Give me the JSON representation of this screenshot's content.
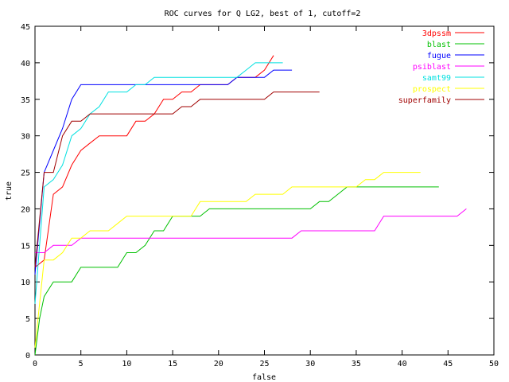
{
  "chart_data": {
    "type": "line",
    "title": "ROC curves for Q LG2, best of 1, cutoff=2",
    "xlabel": "false",
    "ylabel": "true",
    "xlim": [
      0,
      50
    ],
    "ylim": [
      0,
      45
    ],
    "xticks": [
      0,
      5,
      10,
      15,
      20,
      25,
      30,
      35,
      40,
      45,
      50
    ],
    "yticks": [
      0,
      5,
      10,
      15,
      20,
      25,
      30,
      35,
      40,
      45
    ],
    "grid": false,
    "legend_position": "top-right",
    "series": [
      {
        "name": "3dpssm",
        "color": "#ff0000",
        "points": [
          [
            0,
            12
          ],
          [
            1,
            13
          ],
          [
            2,
            22
          ],
          [
            3,
            23
          ],
          [
            4,
            26
          ],
          [
            5,
            28
          ],
          [
            6,
            29
          ],
          [
            7,
            30
          ],
          [
            8,
            30
          ],
          [
            9,
            30
          ],
          [
            10,
            30
          ],
          [
            11,
            32
          ],
          [
            12,
            32
          ],
          [
            13,
            33
          ],
          [
            14,
            35
          ],
          [
            15,
            35
          ],
          [
            16,
            36
          ],
          [
            17,
            36
          ],
          [
            18,
            37
          ],
          [
            19,
            37
          ],
          [
            20,
            37
          ],
          [
            21,
            37
          ],
          [
            22,
            38
          ],
          [
            23,
            38
          ],
          [
            24,
            38
          ],
          [
            25,
            39
          ],
          [
            26,
            41
          ]
        ]
      },
      {
        "name": "blast",
        "color": "#00c000",
        "points": [
          [
            0,
            0
          ],
          [
            0.5,
            5
          ],
          [
            1,
            8
          ],
          [
            2,
            10
          ],
          [
            3,
            10
          ],
          [
            4,
            10
          ],
          [
            5,
            12
          ],
          [
            6,
            12
          ],
          [
            7,
            12
          ],
          [
            8,
            12
          ],
          [
            9,
            12
          ],
          [
            10,
            14
          ],
          [
            11,
            14
          ],
          [
            12,
            15
          ],
          [
            13,
            17
          ],
          [
            14,
            17
          ],
          [
            15,
            19
          ],
          [
            16,
            19
          ],
          [
            17,
            19
          ],
          [
            18,
            19
          ],
          [
            19,
            20
          ],
          [
            20,
            20
          ],
          [
            21,
            20
          ],
          [
            22,
            20
          ],
          [
            23,
            20
          ],
          [
            24,
            20
          ],
          [
            25,
            20
          ],
          [
            26,
            20
          ],
          [
            27,
            20
          ],
          [
            28,
            20
          ],
          [
            29,
            20
          ],
          [
            30,
            20
          ],
          [
            31,
            21
          ],
          [
            32,
            21
          ],
          [
            33,
            22
          ],
          [
            34,
            23
          ],
          [
            35,
            23
          ],
          [
            36,
            23
          ],
          [
            37,
            23
          ],
          [
            38,
            23
          ],
          [
            39,
            23
          ],
          [
            40,
            23
          ],
          [
            41,
            23
          ],
          [
            42,
            23
          ],
          [
            43,
            23
          ],
          [
            44,
            23
          ]
        ]
      },
      {
        "name": "fugue",
        "color": "#0000ff",
        "points": [
          [
            0,
            11
          ],
          [
            1,
            25
          ],
          [
            2,
            28
          ],
          [
            3,
            31
          ],
          [
            4,
            35
          ],
          [
            5,
            37
          ],
          [
            6,
            37
          ],
          [
            7,
            37
          ],
          [
            8,
            37
          ],
          [
            9,
            37
          ],
          [
            10,
            37
          ],
          [
            11,
            37
          ],
          [
            12,
            37
          ],
          [
            13,
            37
          ],
          [
            14,
            37
          ],
          [
            15,
            37
          ],
          [
            16,
            37
          ],
          [
            17,
            37
          ],
          [
            18,
            37
          ],
          [
            19,
            37
          ],
          [
            20,
            37
          ],
          [
            21,
            37
          ],
          [
            22,
            38
          ],
          [
            23,
            38
          ],
          [
            24,
            38
          ],
          [
            25,
            38
          ],
          [
            26,
            39
          ],
          [
            27,
            39
          ],
          [
            28,
            39
          ]
        ]
      },
      {
        "name": "psiblast",
        "color": "#ff00ff",
        "points": [
          [
            0,
            14
          ],
          [
            1,
            14
          ],
          [
            2,
            15
          ],
          [
            3,
            15
          ],
          [
            4,
            15
          ],
          [
            5,
            16
          ],
          [
            6,
            16
          ],
          [
            10,
            16
          ],
          [
            15,
            16
          ],
          [
            20,
            16
          ],
          [
            25,
            16
          ],
          [
            28,
            16
          ],
          [
            29,
            17
          ],
          [
            30,
            17
          ],
          [
            35,
            17
          ],
          [
            37,
            17
          ],
          [
            38,
            19
          ],
          [
            40,
            19
          ],
          [
            45,
            19
          ],
          [
            46,
            19
          ],
          [
            47,
            20
          ]
        ]
      },
      {
        "name": "samt99",
        "color": "#00e0e0",
        "points": [
          [
            0,
            7
          ],
          [
            1,
            23
          ],
          [
            2,
            24
          ],
          [
            3,
            26
          ],
          [
            4,
            30
          ],
          [
            5,
            31
          ],
          [
            6,
            33
          ],
          [
            7,
            34
          ],
          [
            8,
            36
          ],
          [
            9,
            36
          ],
          [
            10,
            36
          ],
          [
            11,
            37
          ],
          [
            12,
            37
          ],
          [
            13,
            38
          ],
          [
            14,
            38
          ],
          [
            15,
            38
          ],
          [
            16,
            38
          ],
          [
            17,
            38
          ],
          [
            18,
            38
          ],
          [
            19,
            38
          ],
          [
            20,
            38
          ],
          [
            21,
            38
          ],
          [
            22,
            38
          ],
          [
            23,
            39
          ],
          [
            24,
            40
          ],
          [
            25,
            40
          ],
          [
            26,
            40
          ],
          [
            27,
            40
          ]
        ]
      },
      {
        "name": "prospect",
        "color": "#ffff00",
        "points": [
          [
            0,
            1
          ],
          [
            1,
            13
          ],
          [
            2,
            13
          ],
          [
            3,
            14
          ],
          [
            4,
            16
          ],
          [
            5,
            16
          ],
          [
            6,
            17
          ],
          [
            7,
            17
          ],
          [
            8,
            17
          ],
          [
            9,
            18
          ],
          [
            10,
            19
          ],
          [
            11,
            19
          ],
          [
            12,
            19
          ],
          [
            13,
            19
          ],
          [
            14,
            19
          ],
          [
            15,
            19
          ],
          [
            16,
            19
          ],
          [
            17,
            19
          ],
          [
            18,
            21
          ],
          [
            19,
            21
          ],
          [
            20,
            21
          ],
          [
            21,
            21
          ],
          [
            22,
            21
          ],
          [
            23,
            21
          ],
          [
            24,
            22
          ],
          [
            25,
            22
          ],
          [
            26,
            22
          ],
          [
            27,
            22
          ],
          [
            28,
            23
          ],
          [
            29,
            23
          ],
          [
            30,
            23
          ],
          [
            33,
            23
          ],
          [
            35,
            23
          ],
          [
            36,
            24
          ],
          [
            37,
            24
          ],
          [
            38,
            25
          ],
          [
            39,
            25
          ],
          [
            40,
            25
          ],
          [
            41,
            25
          ],
          [
            42,
            25
          ]
        ]
      },
      {
        "name": "superfamily",
        "color": "#a00000",
        "points": [
          [
            0,
            12
          ],
          [
            1,
            25
          ],
          [
            2,
            25
          ],
          [
            3,
            30
          ],
          [
            4,
            32
          ],
          [
            5,
            32
          ],
          [
            6,
            33
          ],
          [
            7,
            33
          ],
          [
            8,
            33
          ],
          [
            9,
            33
          ],
          [
            10,
            33
          ],
          [
            11,
            33
          ],
          [
            12,
            33
          ],
          [
            13,
            33
          ],
          [
            14,
            33
          ],
          [
            15,
            33
          ],
          [
            16,
            34
          ],
          [
            17,
            34
          ],
          [
            18,
            35
          ],
          [
            19,
            35
          ],
          [
            20,
            35
          ],
          [
            21,
            35
          ],
          [
            22,
            35
          ],
          [
            23,
            35
          ],
          [
            24,
            35
          ],
          [
            25,
            35
          ],
          [
            26,
            36
          ],
          [
            27,
            36
          ],
          [
            28,
            36
          ],
          [
            29,
            36
          ],
          [
            30,
            36
          ],
          [
            31,
            36
          ]
        ]
      }
    ]
  }
}
